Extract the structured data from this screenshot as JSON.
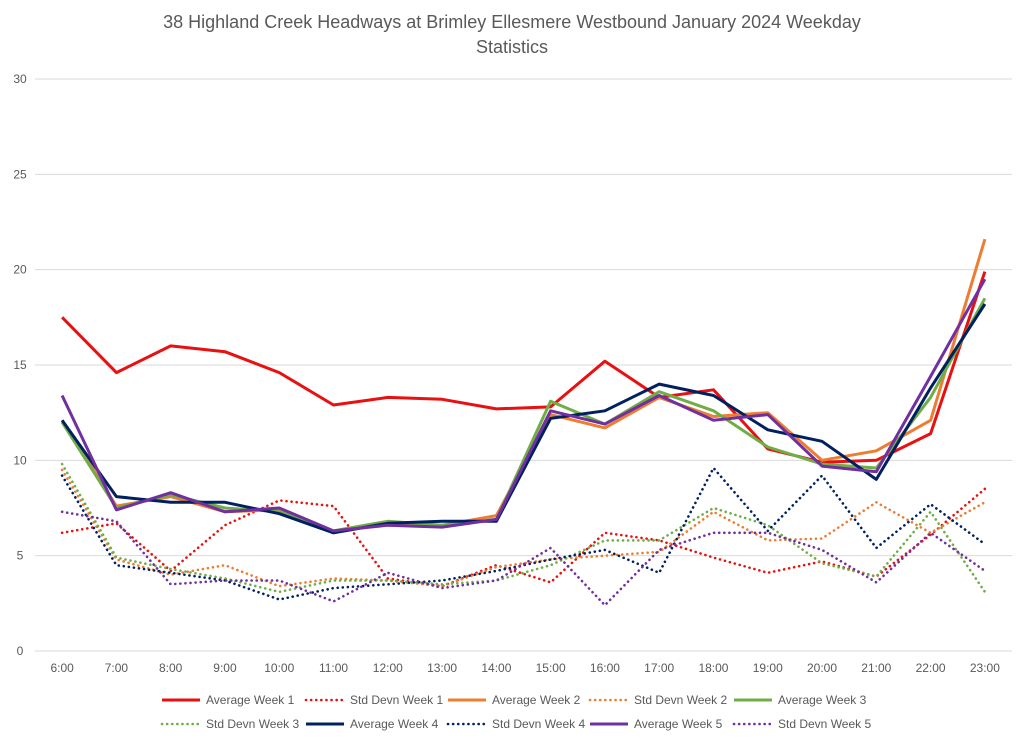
{
  "chart_data": {
    "type": "line",
    "title": "38 Highland Creek Headways at Brimley Ellesmere Westbound January 2024 Weekday Statistics",
    "title_lines": [
      "38 Highland Creek Headways at Brimley Ellesmere Westbound January 2024 Weekday",
      "Statistics"
    ],
    "xlabel": "",
    "ylabel": "",
    "ylim": [
      0,
      30
    ],
    "yticks": [
      0,
      5,
      10,
      15,
      20,
      25,
      30
    ],
    "grid": true,
    "legend_position": "bottom",
    "categories": [
      "6:00",
      "7:00",
      "8:00",
      "9:00",
      "10:00",
      "11:00",
      "12:00",
      "13:00",
      "14:00",
      "15:00",
      "16:00",
      "17:00",
      "18:00",
      "19:00",
      "20:00",
      "21:00",
      "22:00",
      "23:00"
    ],
    "series": [
      {
        "name": "Average Week 1",
        "color": "#e81010",
        "dash": "solid",
        "values": [
          17.5,
          14.6,
          16.0,
          15.7,
          14.6,
          12.9,
          13.3,
          13.2,
          12.7,
          12.8,
          15.2,
          13.3,
          13.7,
          10.6,
          9.9,
          10.0,
          11.4,
          19.9
        ]
      },
      {
        "name": "Std Devn Week 1",
        "color": "#e81010",
        "dash": "dot",
        "values": [
          6.2,
          6.7,
          4.2,
          6.6,
          7.9,
          7.6,
          3.8,
          3.4,
          4.5,
          3.6,
          6.2,
          5.8,
          4.9,
          4.1,
          4.7,
          3.9,
          6.1,
          8.5
        ]
      },
      {
        "name": "Average Week 2",
        "color": "#ed7d31",
        "dash": "solid",
        "values": [
          12.1,
          7.6,
          8.1,
          7.3,
          7.4,
          6.2,
          6.7,
          6.6,
          7.1,
          12.4,
          11.7,
          13.3,
          12.3,
          12.5,
          10.0,
          10.5,
          12.1,
          21.6
        ]
      },
      {
        "name": "Std Devn Week 2",
        "color": "#ed7d31",
        "dash": "dot",
        "values": [
          9.5,
          4.8,
          4.0,
          4.5,
          3.4,
          3.8,
          3.7,
          3.4,
          4.4,
          4.8,
          5.0,
          5.2,
          7.3,
          5.8,
          5.9,
          7.8,
          6.2,
          7.8
        ]
      },
      {
        "name": "Average Week 3",
        "color": "#70ad47",
        "dash": "solid",
        "values": [
          12.0,
          7.5,
          8.2,
          7.5,
          7.3,
          6.3,
          6.8,
          6.6,
          6.9,
          13.1,
          11.9,
          13.6,
          12.6,
          10.7,
          9.8,
          9.6,
          13.3,
          18.5
        ]
      },
      {
        "name": "Std Devn Week 3",
        "color": "#70ad47",
        "dash": "dot",
        "values": [
          9.8,
          4.9,
          4.3,
          3.8,
          3.1,
          3.7,
          3.7,
          3.5,
          3.7,
          4.5,
          5.8,
          5.8,
          7.5,
          6.6,
          4.6,
          3.9,
          7.3,
          3.1
        ]
      },
      {
        "name": "Average Week 4",
        "color": "#002060",
        "dash": "solid",
        "values": [
          12.1,
          8.1,
          7.8,
          7.8,
          7.2,
          6.2,
          6.7,
          6.8,
          6.8,
          12.2,
          12.6,
          14.0,
          13.4,
          11.6,
          11.0,
          9.0,
          13.8,
          18.2
        ]
      },
      {
        "name": "Std Devn Week 4",
        "color": "#002060",
        "dash": "dot",
        "values": [
          9.2,
          4.5,
          4.1,
          3.7,
          2.7,
          3.3,
          3.5,
          3.7,
          4.2,
          4.8,
          5.3,
          4.1,
          9.6,
          6.3,
          9.2,
          5.4,
          7.7,
          5.6
        ]
      },
      {
        "name": "Average Week 5",
        "color": "#7030a0",
        "dash": "solid",
        "values": [
          13.4,
          7.4,
          8.3,
          7.3,
          7.5,
          6.3,
          6.6,
          6.5,
          6.9,
          12.6,
          11.9,
          13.4,
          12.1,
          12.4,
          9.7,
          9.4,
          14.4,
          19.5
        ]
      },
      {
        "name": "Std Devn Week 5",
        "color": "#7030a0",
        "dash": "dot",
        "values": [
          7.3,
          6.8,
          3.5,
          3.7,
          3.7,
          2.6,
          4.1,
          3.3,
          3.7,
          5.4,
          2.4,
          5.3,
          6.2,
          6.2,
          5.3,
          3.6,
          6.2,
          4.2
        ]
      }
    ]
  }
}
